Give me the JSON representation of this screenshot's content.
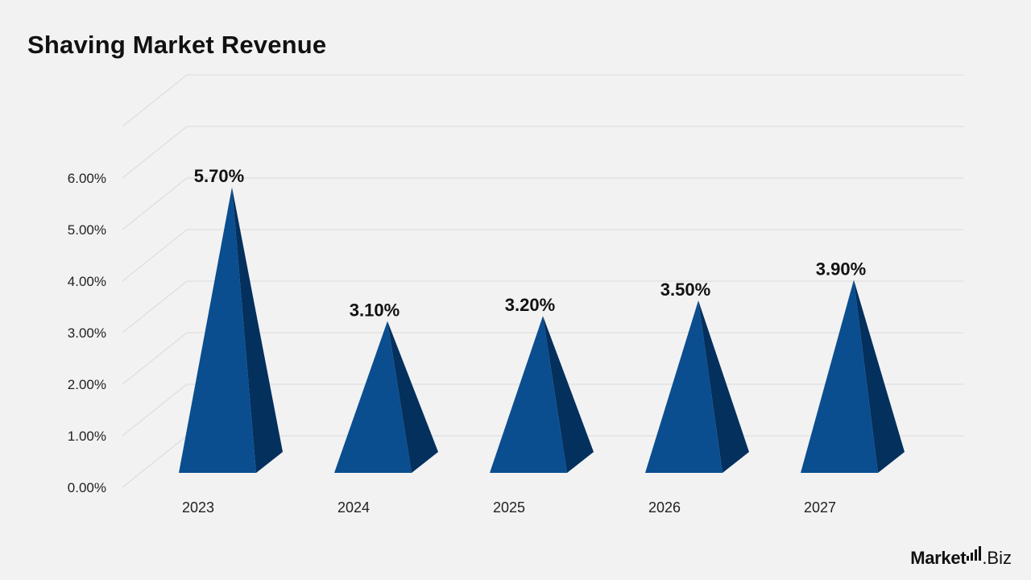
{
  "title": "Shaving Market Revenue",
  "brand": {
    "name_bold": "Market",
    "name_suffix": ".Biz"
  },
  "chart_data": {
    "type": "bar",
    "shape": "pyramid-3d",
    "title": "Shaving Market Revenue",
    "categories": [
      "2023",
      "2024",
      "2025",
      "2026",
      "2027"
    ],
    "series": [
      {
        "values": [
          5.7,
          3.1,
          3.2,
          3.5,
          3.9
        ]
      }
    ],
    "data_labels": [
      "5.70%",
      "3.10%",
      "3.20%",
      "3.50%",
      "3.90%"
    ],
    "yticks": [
      "0.00%",
      "1.00%",
      "2.00%",
      "3.00%",
      "4.00%",
      "5.00%",
      "6.00%"
    ],
    "ylim": [
      0,
      6.5
    ],
    "grid": true,
    "legend": "none",
    "colors": {
      "front": "#0a4e8f",
      "side": "#04305e",
      "grid": "#d9d9d9",
      "text": "#111111"
    }
  }
}
